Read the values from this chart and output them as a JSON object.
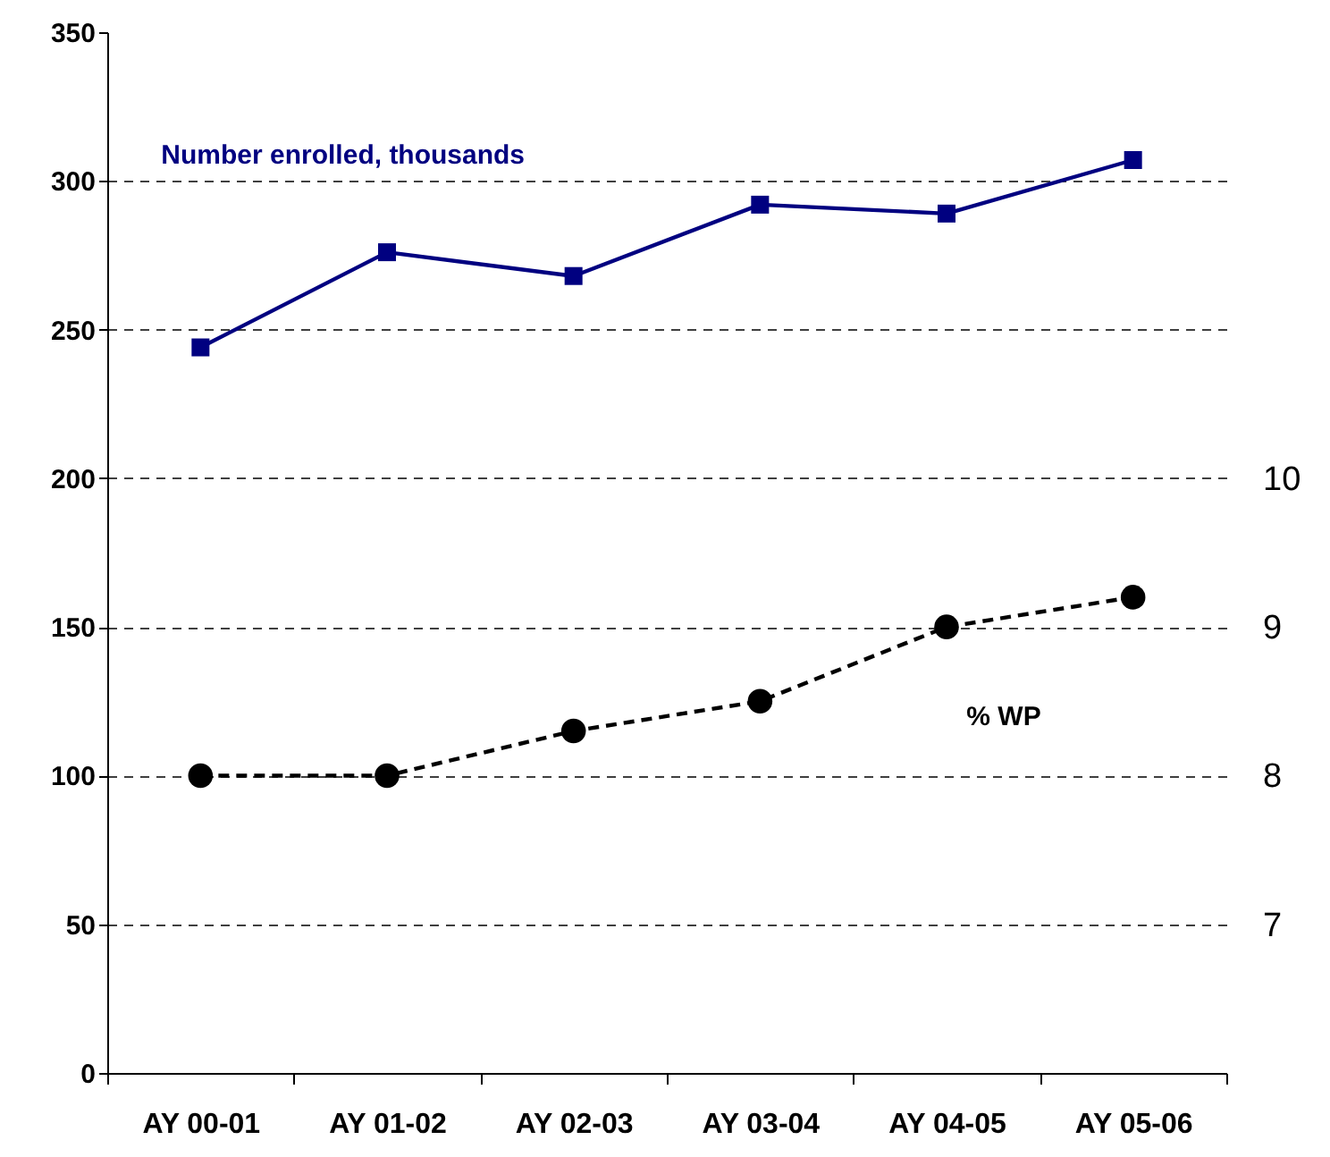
{
  "chart_data": {
    "type": "line",
    "categories": [
      "AY 00-01",
      "AY 01-02",
      "AY 02-03",
      "AY 03-04",
      "AY 04-05",
      "AY 05-06"
    ],
    "series": [
      {
        "name": "Number enrolled, thousands",
        "color": "#000080",
        "values": [
          244,
          276,
          268,
          292,
          289,
          307
        ],
        "marker": "square",
        "line_style": "solid"
      },
      {
        "name": "% WP",
        "color": "#000000",
        "values": [
          8.0,
          8.0,
          8.3,
          8.5,
          9.0,
          9.2
        ],
        "marker": "circle",
        "line_style": "dashed",
        "axis": "y2"
      }
    ],
    "ylim": [
      0,
      350
    ],
    "yticks": [
      0,
      50,
      100,
      150,
      200,
      250,
      300,
      350
    ],
    "y2lim": [
      6,
      13
    ],
    "y2ticks": [
      7,
      8,
      9,
      10
    ],
    "grid": "y"
  }
}
